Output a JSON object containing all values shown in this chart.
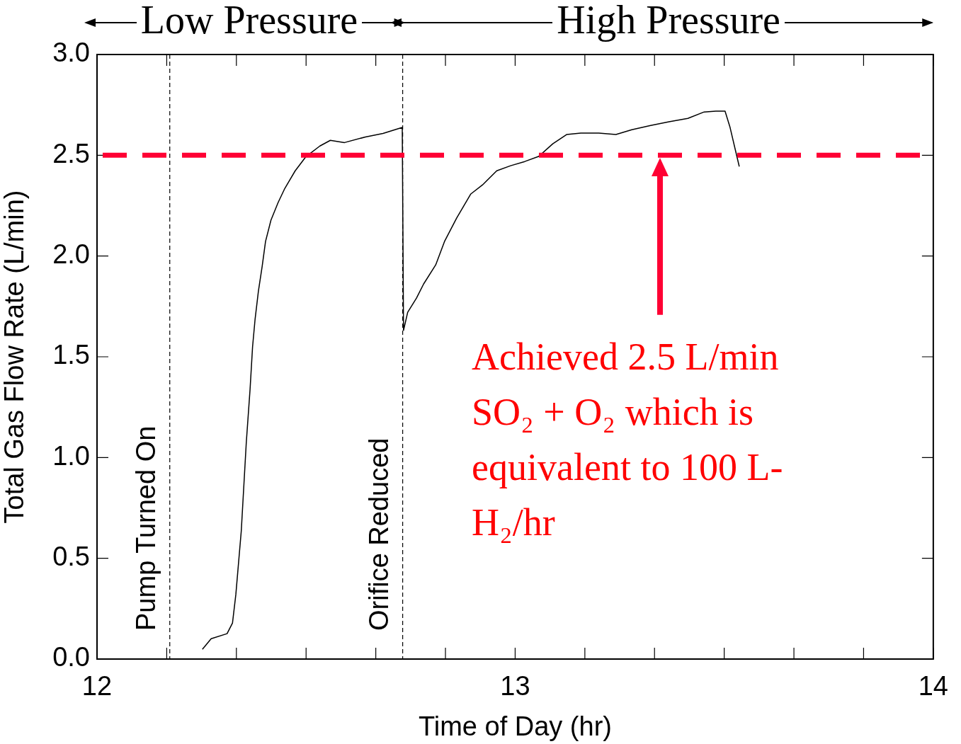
{
  "chart_data": {
    "type": "line",
    "xlabel": "Time of Day (hr)",
    "ylabel": "Total Gas Flow Rate (L/min)",
    "xlim": [
      12,
      14
    ],
    "ylim": [
      0,
      3
    ],
    "xticks": [
      12,
      {
        "value": 12.1667,
        "label": null
      },
      {
        "value": 12.3333,
        "label": null
      },
      {
        "value": 12.5,
        "label": null
      },
      {
        "value": 12.6667,
        "label": null
      },
      {
        "value": 12.8333,
        "label": null
      },
      13,
      {
        "value": 13.1667,
        "label": null
      },
      {
        "value": 13.3333,
        "label": null
      },
      {
        "value": 13.5,
        "label": null
      },
      {
        "value": 13.6667,
        "label": null
      },
      {
        "value": 13.8333,
        "label": null
      },
      14
    ],
    "yticks": [
      {
        "value": 0,
        "label": "0.0"
      },
      0.5,
      {
        "value": 1,
        "label": "1.0"
      },
      1.5,
      {
        "value": 2,
        "label": "2.0"
      },
      2.5,
      {
        "value": 3,
        "label": "3.0"
      }
    ],
    "grid": false,
    "legend": false,
    "marker": "none",
    "line_style": "solid",
    "series": [
      {
        "color": "#000000",
        "x": [
          12.252,
          12.273,
          12.311,
          12.324,
          12.332,
          12.345,
          12.357,
          12.366,
          12.372,
          12.378,
          12.386,
          12.395,
          12.403,
          12.416,
          12.433,
          12.449,
          12.474,
          12.5,
          12.533,
          12.558,
          12.592,
          12.642,
          12.684,
          12.73,
          12.733,
          12.743,
          12.764,
          12.781,
          12.81,
          12.831,
          12.86,
          12.894,
          12.922,
          12.956,
          12.989,
          13.023,
          13.056,
          13.09,
          13.123,
          13.157,
          13.2,
          13.241,
          13.279,
          13.324,
          13.368,
          13.413,
          13.452,
          13.48,
          13.502,
          13.514,
          13.526,
          13.536
        ],
        "values": [
          0.048,
          0.101,
          0.126,
          0.179,
          0.32,
          0.636,
          1.075,
          1.338,
          1.549,
          1.686,
          1.826,
          1.949,
          2.072,
          2.178,
          2.265,
          2.335,
          2.423,
          2.494,
          2.546,
          2.574,
          2.563,
          2.591,
          2.608,
          2.638,
          1.631,
          1.721,
          1.791,
          1.861,
          1.956,
          2.072,
          2.188,
          2.308,
          2.353,
          2.423,
          2.448,
          2.469,
          2.494,
          2.557,
          2.603,
          2.61,
          2.61,
          2.603,
          2.627,
          2.648,
          2.666,
          2.683,
          2.715,
          2.719,
          2.719,
          2.638,
          2.532,
          2.444
        ]
      }
    ],
    "ref_lines": [
      {
        "axis": "x",
        "value": 12.174,
        "label": "Pump Turned On",
        "color": "#000000",
        "line_style": "dashed"
      },
      {
        "axis": "x",
        "value": 12.731,
        "label": "Orifice Reduced",
        "color": "#000000",
        "line_style": "dashed"
      },
      {
        "axis": "y",
        "value": 2.5,
        "color": "#ff0033",
        "line_style": "dashed"
      }
    ],
    "annotations": [
      "Low Pressure",
      "High Pressure",
      "Achieved 2.5 L/min SO₂ + O₂ which is equivalent to 100 L-H₂/hr"
    ]
  }
}
